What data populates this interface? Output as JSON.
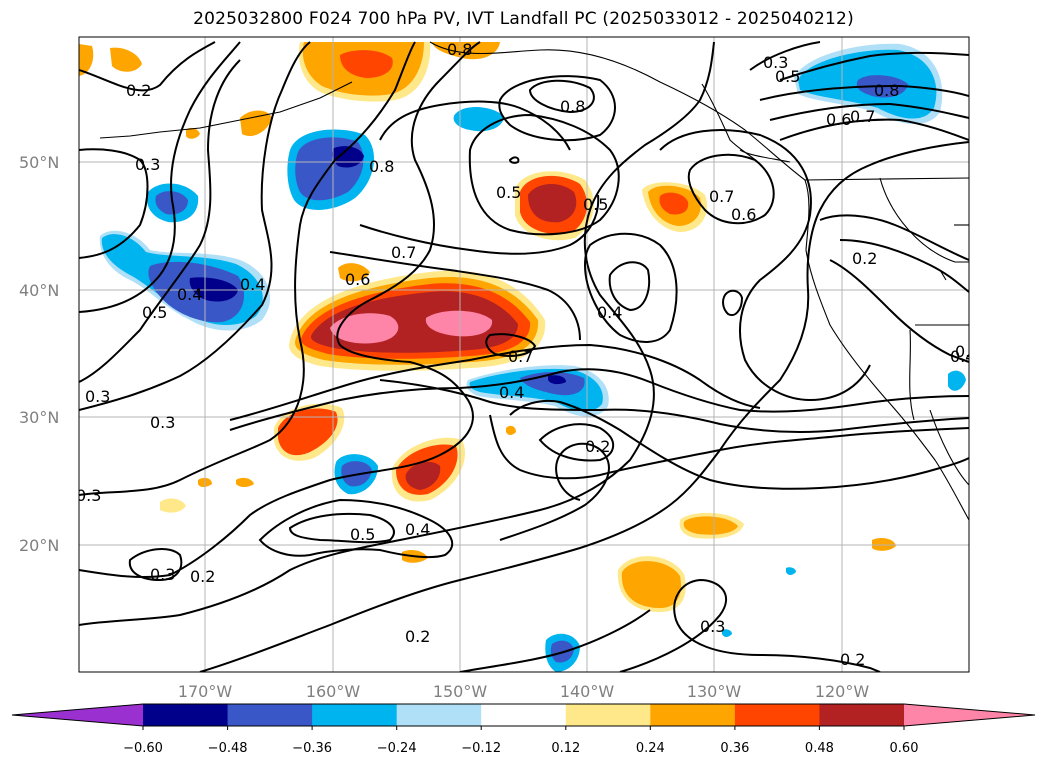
{
  "title": "2025032800 F024 700 hPa PV, IVT Landfall PC (2025033012 - 2025040212)",
  "lat_labels": [
    "50°N",
    "40°N",
    "30°N",
    "20°N"
  ],
  "lon_labels": [
    "170°W",
    "160°W",
    "150°W",
    "140°W",
    "130°W",
    "120°W"
  ],
  "colorbar": {
    "ticks": [
      "−0.60",
      "−0.48",
      "−0.36",
      "−0.24",
      "−0.12",
      "0.12",
      "0.24",
      "0.36",
      "0.48",
      "0.60"
    ],
    "colors": [
      "#9b30d0",
      "#00008b",
      "#3a57c8",
      "#00b4f0",
      "#b0e0f8",
      "#ffffff",
      "#ffe88a",
      "#ffa500",
      "#ff4500",
      "#b22222",
      "#ff85a8"
    ]
  },
  "contour_labels": [
    "0.2",
    "0.3",
    "0.4",
    "0.5",
    "0.8",
    "0.8",
    "0.8",
    "0.4",
    "0.5",
    "0.7",
    "0.8",
    "0.6",
    "0.3",
    "0.5",
    "0.7",
    "0.6",
    "0.4",
    "0.7",
    "0.5",
    "0.6",
    "0.7",
    "0.2",
    "0.4",
    "0.3",
    "0.3",
    "0.4",
    "0.5",
    "0.4",
    "0.2",
    "0.3",
    "0.3",
    "0.2",
    "0.2",
    "0.3",
    "0.2",
    "0.2"
  ]
}
